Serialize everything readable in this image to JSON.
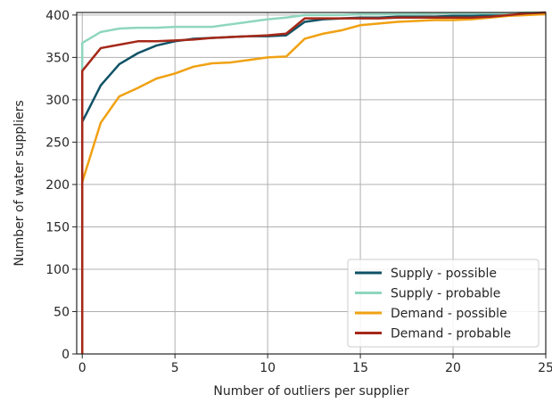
{
  "chart_data": {
    "type": "line",
    "title": "",
    "xlabel": "Number of outliers per supplier",
    "ylabel": "Number of water suppliers",
    "xlim": [
      -0.3,
      25
    ],
    "ylim": [
      0,
      403
    ],
    "xticks": [
      0,
      5,
      10,
      15,
      20,
      25
    ],
    "yticks": [
      0,
      50,
      100,
      150,
      200,
      250,
      300,
      350,
      400
    ],
    "grid": true,
    "legend_position": "lower-right",
    "series": [
      {
        "name": "Supply - possible",
        "color": "#0f5266",
        "points": [
          [
            0,
            0
          ],
          [
            0,
            274
          ],
          [
            1,
            317
          ],
          [
            2,
            342
          ],
          [
            3,
            355
          ],
          [
            4,
            364
          ],
          [
            5,
            369
          ],
          [
            6,
            372
          ],
          [
            7,
            373
          ],
          [
            8,
            374
          ],
          [
            9,
            375
          ],
          [
            10,
            375
          ],
          [
            11,
            376
          ],
          [
            12,
            392
          ],
          [
            13,
            395
          ],
          [
            14,
            396
          ],
          [
            15,
            397
          ],
          [
            16,
            397
          ],
          [
            17,
            398
          ],
          [
            18,
            398
          ],
          [
            19,
            398
          ],
          [
            20,
            399
          ],
          [
            21,
            399
          ],
          [
            22,
            400
          ],
          [
            23,
            401
          ],
          [
            24,
            402
          ],
          [
            25,
            403
          ]
        ]
      },
      {
        "name": "Supply - probable",
        "color": "#8fd6bf",
        "points": [
          [
            0,
            0
          ],
          [
            0,
            367
          ],
          [
            1,
            380
          ],
          [
            2,
            384
          ],
          [
            3,
            385
          ],
          [
            4,
            385
          ],
          [
            5,
            386
          ],
          [
            6,
            386
          ],
          [
            7,
            386
          ],
          [
            8,
            389
          ],
          [
            9,
            392
          ],
          [
            10,
            395
          ],
          [
            11,
            397
          ],
          [
            12,
            400
          ],
          [
            13,
            400
          ],
          [
            14,
            400
          ],
          [
            15,
            401
          ],
          [
            16,
            401
          ],
          [
            17,
            401
          ],
          [
            18,
            401
          ],
          [
            19,
            402
          ],
          [
            20,
            402
          ],
          [
            21,
            402
          ],
          [
            22,
            402
          ],
          [
            23,
            402
          ],
          [
            24,
            403
          ],
          [
            25,
            403
          ]
        ]
      },
      {
        "name": "Demand - possible",
        "color": "#f0a112",
        "points": [
          [
            0,
            0
          ],
          [
            0,
            203
          ],
          [
            1,
            273
          ],
          [
            2,
            304
          ],
          [
            3,
            314
          ],
          [
            4,
            325
          ],
          [
            5,
            331
          ],
          [
            6,
            339
          ],
          [
            7,
            343
          ],
          [
            8,
            344
          ],
          [
            9,
            347
          ],
          [
            10,
            350
          ],
          [
            11,
            351
          ],
          [
            12,
            372
          ],
          [
            13,
            378
          ],
          [
            14,
            382
          ],
          [
            15,
            388
          ],
          [
            16,
            390
          ],
          [
            17,
            392
          ],
          [
            18,
            393
          ],
          [
            19,
            394
          ],
          [
            20,
            394
          ],
          [
            21,
            395
          ],
          [
            22,
            397
          ],
          [
            23,
            399
          ],
          [
            24,
            400
          ],
          [
            25,
            401
          ]
        ]
      },
      {
        "name": "Demand - probable",
        "color": "#a52818",
        "points": [
          [
            0,
            0
          ],
          [
            0,
            334
          ],
          [
            1,
            361
          ],
          [
            2,
            365
          ],
          [
            3,
            369
          ],
          [
            4,
            369
          ],
          [
            5,
            370
          ],
          [
            6,
            371
          ],
          [
            7,
            373
          ],
          [
            8,
            374
          ],
          [
            9,
            375
          ],
          [
            10,
            376
          ],
          [
            11,
            378
          ],
          [
            12,
            396
          ],
          [
            13,
            396
          ],
          [
            14,
            396
          ],
          [
            15,
            396
          ],
          [
            16,
            396
          ],
          [
            17,
            397
          ],
          [
            18,
            397
          ],
          [
            19,
            397
          ],
          [
            20,
            397
          ],
          [
            21,
            397
          ],
          [
            22,
            398
          ],
          [
            23,
            400
          ],
          [
            24,
            402
          ],
          [
            25,
            403
          ]
        ]
      }
    ]
  }
}
